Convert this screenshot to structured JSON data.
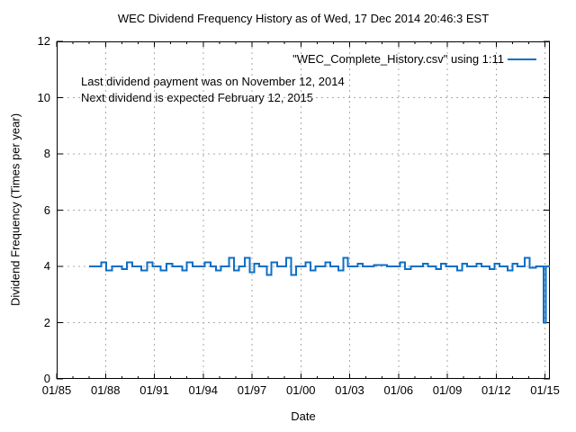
{
  "chart": {
    "annotation_line1": "Last dividend payment was on November 12, 2014",
    "annotation_line2": "Next dividend is expected February 12, 2015"
  },
  "chart_data": {
    "type": "line",
    "title": "WEC Dividend Frequency History as of Wed, 17 Dec 2014 20:46:3 EST",
    "xlabel": "Date",
    "ylabel": "Dividend Frequency (Times per year)",
    "xlim": [
      1985.0,
      2015.3
    ],
    "ylim": [
      0,
      12
    ],
    "xticks": [
      {
        "label": "01/85",
        "year": 1985
      },
      {
        "label": "01/88",
        "year": 1988
      },
      {
        "label": "01/91",
        "year": 1991
      },
      {
        "label": "01/94",
        "year": 1994
      },
      {
        "label": "01/97",
        "year": 1997
      },
      {
        "label": "01/00",
        "year": 2000
      },
      {
        "label": "01/03",
        "year": 2003
      },
      {
        "label": "01/06",
        "year": 2006
      },
      {
        "label": "01/09",
        "year": 2009
      },
      {
        "label": "01/12",
        "year": 2012
      },
      {
        "label": "01/15",
        "year": 2015
      }
    ],
    "yticks": [
      0,
      2,
      4,
      6,
      8,
      10,
      12
    ],
    "minor_xtick_interval_years": 1,
    "grid": true,
    "legend_position": "top-right-inside",
    "colors": {
      "line": "#0d6fc5",
      "grid": "#a9a9a9",
      "axis": "#000000",
      "text": "#000000"
    },
    "series": [
      {
        "name": "\"WEC_Complete_History.csv\" using 1:11",
        "mode": "step-after",
        "points": [
          [
            1987.0,
            4
          ],
          [
            1987.75,
            4.15
          ],
          [
            1988.05,
            3.85
          ],
          [
            1988.4,
            4
          ],
          [
            1989.0,
            3.9
          ],
          [
            1989.3,
            4.15
          ],
          [
            1989.65,
            4
          ],
          [
            1990.2,
            3.85
          ],
          [
            1990.55,
            4.15
          ],
          [
            1990.9,
            4
          ],
          [
            1991.4,
            3.85
          ],
          [
            1991.75,
            4.1
          ],
          [
            1992.1,
            4
          ],
          [
            1992.7,
            3.85
          ],
          [
            1993.0,
            4.15
          ],
          [
            1993.35,
            4
          ],
          [
            1994.1,
            4.15
          ],
          [
            1994.45,
            4
          ],
          [
            1994.8,
            3.85
          ],
          [
            1995.1,
            4
          ],
          [
            1995.6,
            4.3
          ],
          [
            1995.9,
            3.85
          ],
          [
            1996.2,
            4
          ],
          [
            1996.55,
            4.3
          ],
          [
            1996.85,
            3.8
          ],
          [
            1997.15,
            4.1
          ],
          [
            1997.45,
            4
          ],
          [
            1997.9,
            3.7
          ],
          [
            1998.2,
            4.15
          ],
          [
            1998.55,
            4
          ],
          [
            1999.1,
            4.3
          ],
          [
            1999.4,
            3.7
          ],
          [
            1999.7,
            4
          ],
          [
            2000.3,
            4.15
          ],
          [
            2000.6,
            3.85
          ],
          [
            2000.9,
            4
          ],
          [
            2001.5,
            4.15
          ],
          [
            2001.8,
            4
          ],
          [
            2002.3,
            3.85
          ],
          [
            2002.6,
            4.3
          ],
          [
            2002.9,
            4
          ],
          [
            2003.5,
            4.1
          ],
          [
            2003.8,
            4
          ],
          [
            2004.5,
            4.05
          ],
          [
            2005.3,
            4
          ],
          [
            2006.1,
            4.15
          ],
          [
            2006.4,
            3.9
          ],
          [
            2006.75,
            4
          ],
          [
            2007.5,
            4.1
          ],
          [
            2007.8,
            4
          ],
          [
            2008.3,
            3.9
          ],
          [
            2008.6,
            4.1
          ],
          [
            2008.9,
            4
          ],
          [
            2009.6,
            3.85
          ],
          [
            2009.9,
            4.1
          ],
          [
            2010.2,
            4
          ],
          [
            2010.8,
            4.1
          ],
          [
            2011.1,
            4
          ],
          [
            2011.6,
            3.9
          ],
          [
            2011.9,
            4.1
          ],
          [
            2012.2,
            4
          ],
          [
            2012.7,
            3.85
          ],
          [
            2013.0,
            4.1
          ],
          [
            2013.3,
            4
          ],
          [
            2013.75,
            4.3
          ],
          [
            2014.05,
            3.95
          ],
          [
            2014.45,
            4
          ],
          [
            2014.9,
            2
          ],
          [
            2015.05,
            4
          ]
        ]
      }
    ]
  }
}
